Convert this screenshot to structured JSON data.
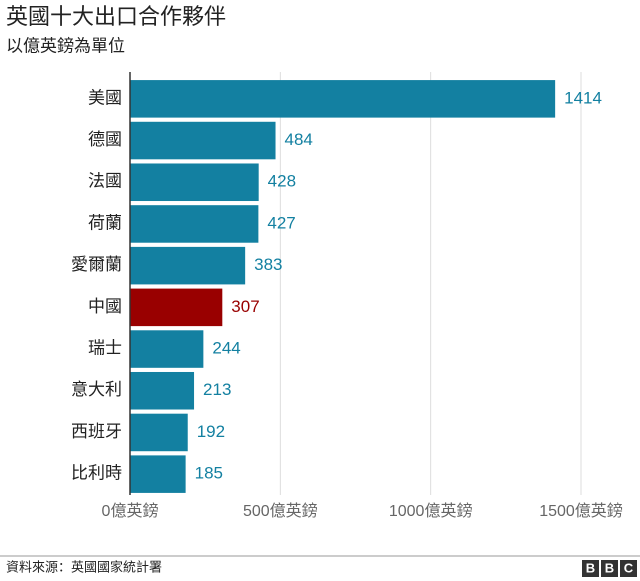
{
  "chart_data": {
    "type": "barh",
    "title": "英國十大出口合作夥伴",
    "subtitle": "以億英鎊為單位",
    "categories": [
      "美國",
      "德國",
      "法國",
      "荷蘭",
      "愛爾蘭",
      "中國",
      "瑞士",
      "意大利",
      "西班牙",
      "比利時"
    ],
    "values": [
      1414,
      484,
      428,
      427,
      383,
      307,
      244,
      213,
      192,
      185
    ],
    "colors": [
      "#1380a1",
      "#1380a1",
      "#1380a1",
      "#1380a1",
      "#1380a1",
      "#990000",
      "#1380a1",
      "#1380a1",
      "#1380a1",
      "#1380a1"
    ],
    "xlim": [
      0,
      1500
    ],
    "xticks": [
      {
        "value": 0,
        "label": "0億英鎊"
      },
      {
        "value": 500,
        "label": "500億英鎊"
      },
      {
        "value": 1000,
        "label": "1000億英鎊"
      },
      {
        "value": 1500,
        "label": "1500億英鎊"
      }
    ],
    "grid": true
  },
  "source": "資料來源：英國國家統計署",
  "logo": [
    "B",
    "B",
    "C"
  ]
}
